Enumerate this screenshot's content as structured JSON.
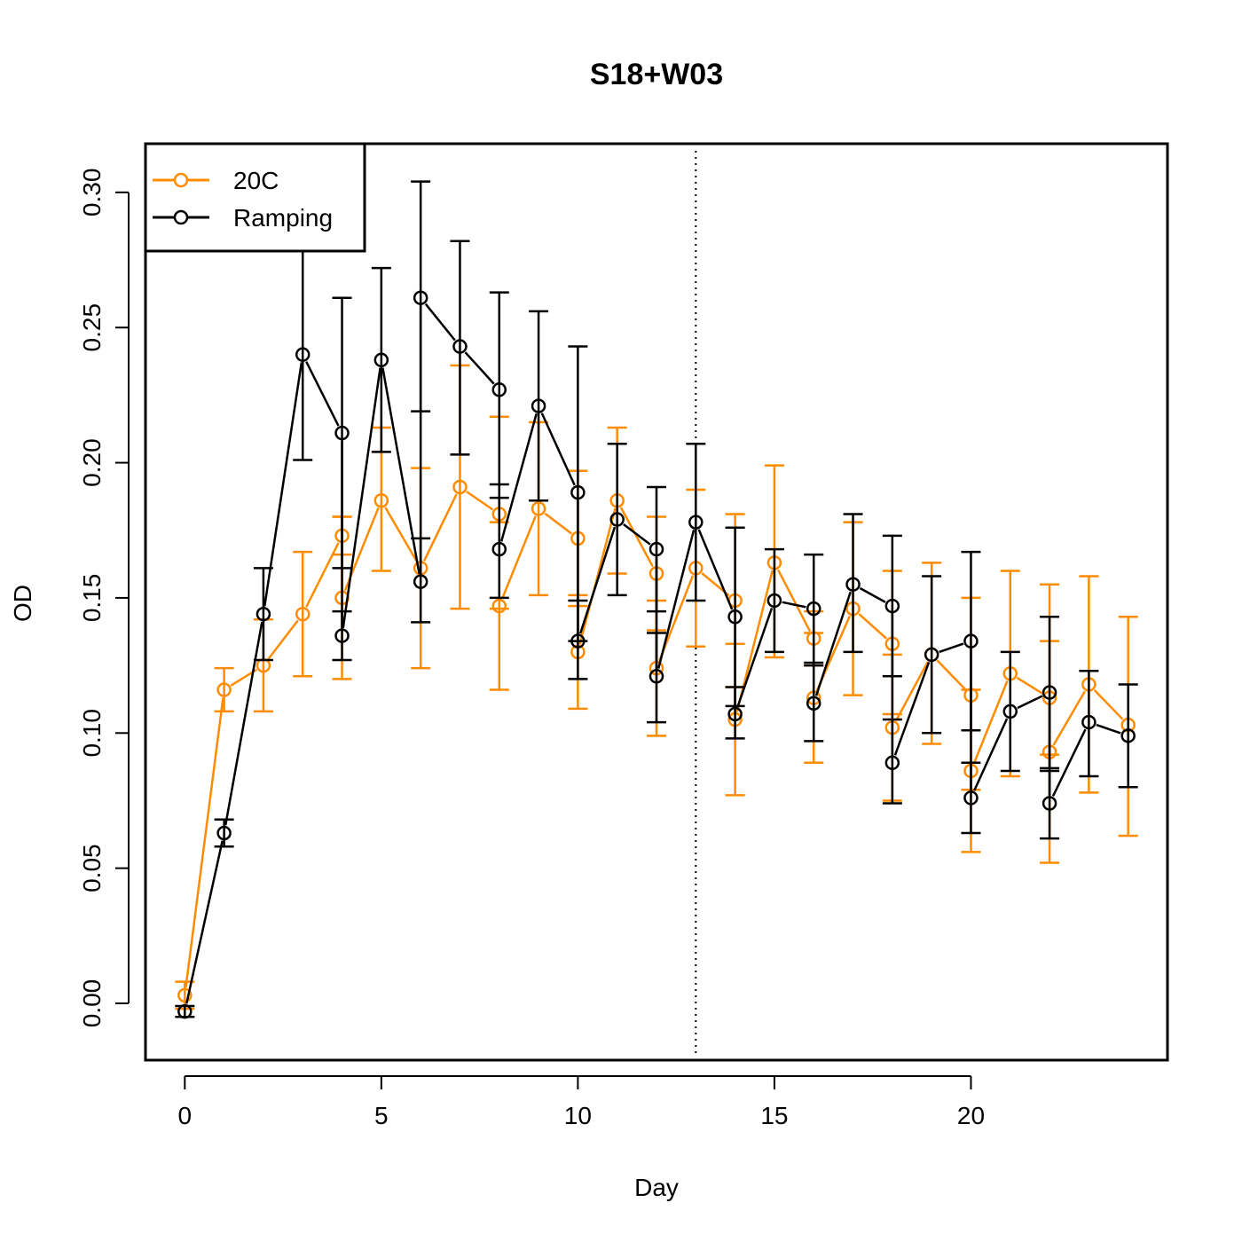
{
  "chart_data": {
    "type": "line",
    "title": "S18+W03",
    "xlabel": "Day",
    "ylabel": "OD",
    "xlim": [
      -1,
      25
    ],
    "ylim": [
      -0.021,
      0.318
    ],
    "x_ticks": [
      0,
      5,
      10,
      15,
      20
    ],
    "x_tick_labels": [
      "0",
      "5",
      "10",
      "15",
      "20"
    ],
    "y_ticks": [
      0.0,
      0.05,
      0.1,
      0.15,
      0.2,
      0.25,
      0.3
    ],
    "y_tick_labels": [
      "0.00",
      "0.05",
      "0.10",
      "0.15",
      "0.20",
      "0.25",
      "0.30"
    ],
    "grid": false,
    "legend_position": "top-left",
    "vline": {
      "x": 13,
      "style": "dotted",
      "color": "#000000"
    },
    "series": [
      {
        "name": "20C",
        "color": "#FF8C00",
        "points": [
          {
            "x": 0,
            "y": 0.003,
            "lo": -0.002,
            "hi": 0.008
          },
          {
            "x": 1,
            "y": 0.116,
            "lo": 0.108,
            "hi": 0.124
          },
          {
            "x": 2,
            "y": 0.125,
            "lo": 0.108,
            "hi": 0.142
          },
          {
            "x": 3,
            "y": 0.144,
            "lo": 0.121,
            "hi": 0.167
          },
          {
            "x": 4,
            "y": 0.173,
            "lo": 0.166,
            "hi": 0.18
          },
          {
            "x": 4,
            "y": 0.15,
            "lo": 0.12,
            "hi": 0.18
          },
          {
            "x": 5,
            "y": 0.186,
            "lo": 0.16,
            "hi": 0.213
          },
          {
            "x": 6,
            "y": 0.161,
            "lo": 0.124,
            "hi": 0.198
          },
          {
            "x": 7,
            "y": 0.191,
            "lo": 0.146,
            "hi": 0.236
          },
          {
            "x": 8,
            "y": 0.181,
            "lo": 0.146,
            "hi": 0.217
          },
          {
            "x": 8,
            "y": 0.147,
            "lo": 0.116,
            "hi": 0.178
          },
          {
            "x": 9,
            "y": 0.183,
            "lo": 0.151,
            "hi": 0.215
          },
          {
            "x": 10,
            "y": 0.172,
            "lo": 0.147,
            "hi": 0.197
          },
          {
            "x": 10,
            "y": 0.13,
            "lo": 0.109,
            "hi": 0.151
          },
          {
            "x": 11,
            "y": 0.186,
            "lo": 0.159,
            "hi": 0.213
          },
          {
            "x": 12,
            "y": 0.159,
            "lo": 0.138,
            "hi": 0.18
          },
          {
            "x": 12,
            "y": 0.124,
            "lo": 0.099,
            "hi": 0.149
          },
          {
            "x": 13,
            "y": 0.161,
            "lo": 0.132,
            "hi": 0.19
          },
          {
            "x": 14,
            "y": 0.149,
            "lo": 0.117,
            "hi": 0.181
          },
          {
            "x": 14,
            "y": 0.105,
            "lo": 0.077,
            "hi": 0.133
          },
          {
            "x": 15,
            "y": 0.163,
            "lo": 0.128,
            "hi": 0.199
          },
          {
            "x": 16,
            "y": 0.135,
            "lo": 0.125,
            "hi": 0.145
          },
          {
            "x": 16,
            "y": 0.113,
            "lo": 0.089,
            "hi": 0.137
          },
          {
            "x": 17,
            "y": 0.146,
            "lo": 0.114,
            "hi": 0.178
          },
          {
            "x": 18,
            "y": 0.133,
            "lo": 0.107,
            "hi": 0.16
          },
          {
            "x": 18,
            "y": 0.102,
            "lo": 0.075,
            "hi": 0.129
          },
          {
            "x": 19,
            "y": 0.129,
            "lo": 0.096,
            "hi": 0.163
          },
          {
            "x": 20,
            "y": 0.114,
            "lo": 0.079,
            "hi": 0.15
          },
          {
            "x": 20,
            "y": 0.086,
            "lo": 0.056,
            "hi": 0.116
          },
          {
            "x": 21,
            "y": 0.122,
            "lo": 0.084,
            "hi": 0.16
          },
          {
            "x": 22,
            "y": 0.113,
            "lo": 0.092,
            "hi": 0.134
          },
          {
            "x": 22,
            "y": 0.093,
            "lo": 0.052,
            "hi": 0.155
          },
          {
            "x": 23,
            "y": 0.118,
            "lo": 0.078,
            "hi": 0.158
          },
          {
            "x": 24,
            "y": 0.103,
            "lo": 0.062,
            "hi": 0.143
          }
        ]
      },
      {
        "name": "Ramping",
        "color": "#000000",
        "points": [
          {
            "x": 0,
            "y": -0.003,
            "lo": -0.005,
            "hi": -0.001
          },
          {
            "x": 1,
            "y": 0.063,
            "lo": 0.058,
            "hi": 0.068
          },
          {
            "x": 2,
            "y": 0.144,
            "lo": 0.127,
            "hi": 0.161
          },
          {
            "x": 3,
            "y": 0.24,
            "lo": 0.201,
            "hi": 0.28
          },
          {
            "x": 4,
            "y": 0.211,
            "lo": 0.161,
            "hi": 0.261
          },
          {
            "x": 4,
            "y": 0.136,
            "lo": 0.127,
            "hi": 0.145
          },
          {
            "x": 5,
            "y": 0.238,
            "lo": 0.204,
            "hi": 0.272
          },
          {
            "x": 6,
            "y": 0.156,
            "lo": 0.141,
            "hi": 0.172
          },
          {
            "x": 6,
            "y": 0.261,
            "lo": 0.219,
            "hi": 0.304
          },
          {
            "x": 7,
            "y": 0.243,
            "lo": 0.203,
            "hi": 0.282
          },
          {
            "x": 8,
            "y": 0.227,
            "lo": 0.192,
            "hi": 0.263
          },
          {
            "x": 8,
            "y": 0.168,
            "lo": 0.15,
            "hi": 0.187
          },
          {
            "x": 9,
            "y": 0.221,
            "lo": 0.186,
            "hi": 0.256
          },
          {
            "x": 10,
            "y": 0.189,
            "lo": 0.134,
            "hi": 0.243
          },
          {
            "x": 10,
            "y": 0.134,
            "lo": 0.12,
            "hi": 0.149
          },
          {
            "x": 11,
            "y": 0.179,
            "lo": 0.151,
            "hi": 0.207
          },
          {
            "x": 12,
            "y": 0.168,
            "lo": 0.145,
            "hi": 0.191
          },
          {
            "x": 12,
            "y": 0.121,
            "lo": 0.104,
            "hi": 0.137
          },
          {
            "x": 13,
            "y": 0.178,
            "lo": 0.149,
            "hi": 0.207
          },
          {
            "x": 14,
            "y": 0.143,
            "lo": 0.11,
            "hi": 0.176
          },
          {
            "x": 14,
            "y": 0.107,
            "lo": 0.098,
            "hi": 0.117
          },
          {
            "x": 15,
            "y": 0.149,
            "lo": 0.13,
            "hi": 0.168
          },
          {
            "x": 16,
            "y": 0.146,
            "lo": 0.126,
            "hi": 0.166
          },
          {
            "x": 16,
            "y": 0.111,
            "lo": 0.097,
            "hi": 0.125
          },
          {
            "x": 17,
            "y": 0.155,
            "lo": 0.13,
            "hi": 0.181
          },
          {
            "x": 18,
            "y": 0.147,
            "lo": 0.121,
            "hi": 0.173
          },
          {
            "x": 18,
            "y": 0.089,
            "lo": 0.074,
            "hi": 0.105
          },
          {
            "x": 19,
            "y": 0.129,
            "lo": 0.1,
            "hi": 0.158
          },
          {
            "x": 20,
            "y": 0.134,
            "lo": 0.101,
            "hi": 0.167
          },
          {
            "x": 20,
            "y": 0.076,
            "lo": 0.063,
            "hi": 0.089
          },
          {
            "x": 21,
            "y": 0.108,
            "lo": 0.086,
            "hi": 0.13
          },
          {
            "x": 22,
            "y": 0.115,
            "lo": 0.087,
            "hi": 0.143
          },
          {
            "x": 22,
            "y": 0.074,
            "lo": 0.061,
            "hi": 0.086
          },
          {
            "x": 23,
            "y": 0.104,
            "lo": 0.084,
            "hi": 0.123
          },
          {
            "x": 24,
            "y": 0.099,
            "lo": 0.08,
            "hi": 0.118
          }
        ]
      }
    ],
    "legend": [
      {
        "label": "20C",
        "color": "#FF8C00"
      },
      {
        "label": "Ramping",
        "color": "#000000"
      }
    ]
  }
}
